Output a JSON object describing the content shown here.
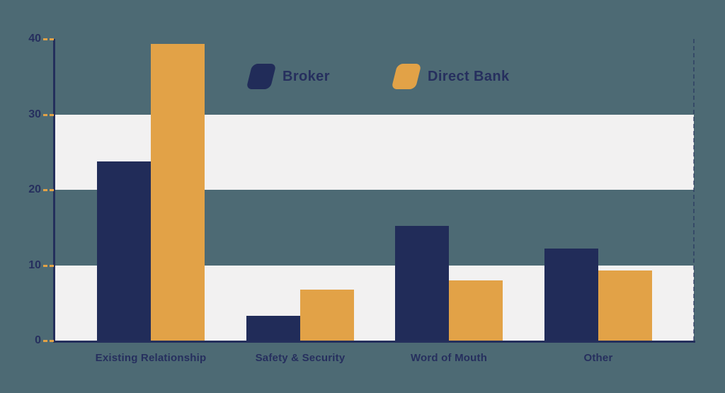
{
  "chart_data": {
    "type": "bar",
    "title": "",
    "categories": [
      "Existing Relationship",
      "Safety & Security",
      "Word of Mouth",
      "Other"
    ],
    "series": [
      {
        "name": "Broker",
        "color": "#212C59",
        "values": [
          23.8,
          3.3,
          15.2,
          12.2
        ]
      },
      {
        "name": "Direct Bank",
        "color": "#E2A247",
        "values": [
          39.3,
          6.8,
          8.0,
          9.3
        ]
      }
    ],
    "ylim": [
      0,
      40
    ],
    "yticks": [
      0,
      10,
      20,
      30,
      40
    ],
    "band_ranges": [
      [
        0,
        10
      ],
      [
        20,
        30
      ]
    ],
    "grid": "banded-horizontal",
    "legend_position": "top-center"
  },
  "colors": {
    "background": "#4D6A74",
    "band": "#F2F1F1",
    "axis": "#242F5C",
    "text": "#262F5E",
    "tick_dash": "#E2A247"
  }
}
